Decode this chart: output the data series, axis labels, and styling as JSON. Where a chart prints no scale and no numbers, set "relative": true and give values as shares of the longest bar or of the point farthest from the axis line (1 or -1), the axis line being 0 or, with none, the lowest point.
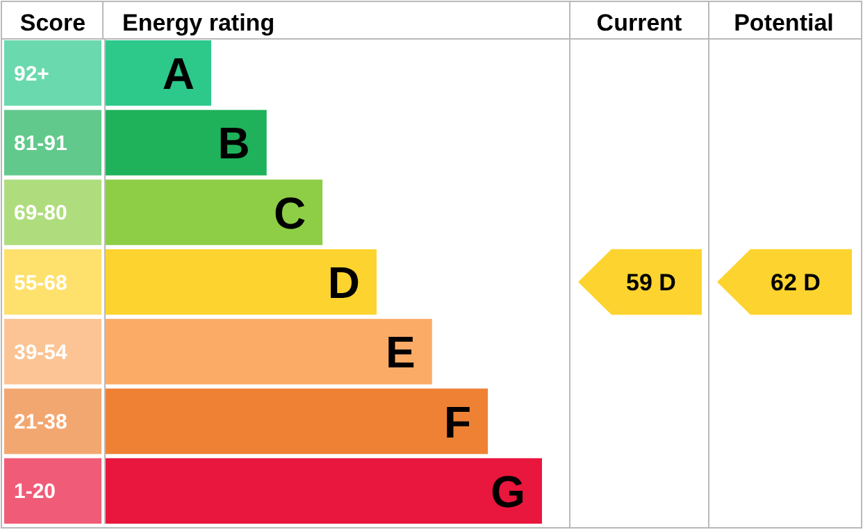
{
  "chart_data": {
    "type": "bar",
    "orientation": "horizontal",
    "relative": true,
    "ylabel": "Score",
    "xlabel": "Energy rating",
    "categories": [
      "92+",
      "81-91",
      "69-80",
      "55-68",
      "39-54",
      "21-38",
      "1-20"
    ],
    "values": [
      0.242,
      0.369,
      0.497,
      0.621,
      0.748,
      0.876,
      1.0
    ],
    "colors": [
      "#2cc98b",
      "#1fb25a",
      "#8dce46",
      "#fdd42f",
      "#fbab66",
      "#ee8133",
      "#e9163d"
    ],
    "annotations": [
      "Current",
      "Potential",
      "59 D",
      "62 D",
      "A",
      "B",
      "C",
      "D",
      "E",
      "F",
      "G"
    ]
  }
}
